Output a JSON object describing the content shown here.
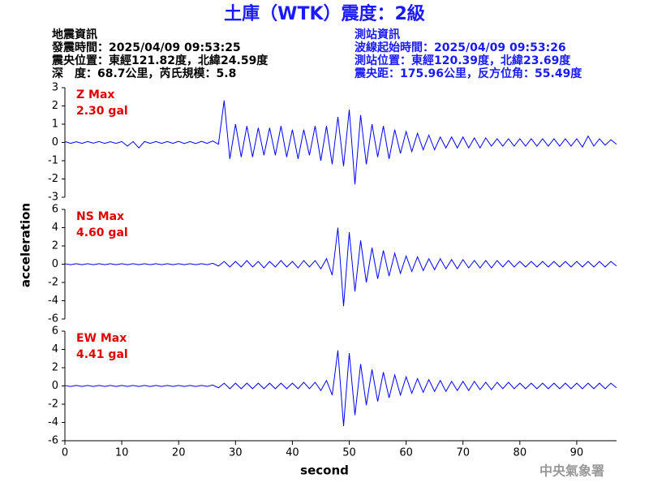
{
  "header": {
    "title": "土庫（WTK）震度：2級",
    "event": [
      "地震資訊",
      "發震時間：2025/04/09 09:53:25",
      "震央位置：東經121.82度，北緯24.59度",
      "深　度：68.7公里，芮氏規模：5.8"
    ],
    "station": [
      "測站資訊",
      "波線起始時間：2025/04/09 09:53:26",
      "測站位置：東經120.39度，北緯23.69度",
      "震央距：175.96公里，反方位角：55.49度"
    ],
    "agency": "中央氣象署"
  },
  "chart_data": [
    {
      "type": "line",
      "label": "Z Max",
      "max_label": "2.30 gal",
      "color": "#0000ff",
      "xlim": [
        0,
        97
      ],
      "ylim": [
        -3,
        3
      ],
      "yticks": [
        -3,
        -2,
        -1,
        0,
        1,
        2,
        3
      ],
      "x": [
        0,
        1,
        2,
        3,
        4,
        5,
        6,
        7,
        8,
        9,
        10,
        11,
        12,
        13,
        14,
        15,
        16,
        17,
        18,
        19,
        20,
        21,
        22,
        23,
        24,
        25,
        26,
        27,
        28,
        29,
        30,
        31,
        32,
        33,
        34,
        35,
        36,
        37,
        38,
        39,
        40,
        41,
        42,
        43,
        44,
        45,
        46,
        47,
        48,
        49,
        50,
        51,
        52,
        53,
        54,
        55,
        56,
        57,
        58,
        59,
        60,
        61,
        62,
        63,
        64,
        65,
        66,
        67,
        68,
        69,
        70,
        71,
        72,
        73,
        74,
        75,
        76,
        77,
        78,
        79,
        80,
        81,
        82,
        83,
        84,
        85,
        86,
        87,
        88,
        89,
        90,
        91,
        92,
        93,
        94,
        95,
        96,
        97
      ],
      "values": [
        0.05,
        -0.05,
        0.04,
        -0.05,
        0.05,
        -0.04,
        0.05,
        -0.05,
        0.04,
        -0.05,
        0.05,
        -0.2,
        0.05,
        -0.3,
        0.05,
        -0.05,
        0.05,
        -0.05,
        0.05,
        -0.05,
        0.06,
        -0.06,
        0.05,
        -0.06,
        0.06,
        -0.05,
        0.08,
        -0.1,
        2.3,
        -0.9,
        1.0,
        -0.8,
        0.9,
        -0.8,
        0.8,
        -0.7,
        0.8,
        -0.7,
        0.9,
        -0.8,
        0.7,
        -0.9,
        0.7,
        -0.7,
        0.9,
        -1.0,
        0.9,
        -1.2,
        1.4,
        -1.3,
        1.8,
        -2.3,
        1.5,
        -1.2,
        1.0,
        -0.8,
        0.9,
        -0.9,
        0.7,
        -0.6,
        0.6,
        -0.5,
        0.5,
        -0.4,
        0.4,
        -0.4,
        0.3,
        -0.3,
        0.3,
        -0.3,
        0.3,
        -0.3,
        0.25,
        -0.3,
        0.25,
        -0.2,
        0.2,
        -0.2,
        0.2,
        -0.2,
        0.2,
        -0.2,
        0.2,
        -0.2,
        0.2,
        -0.2,
        0.2,
        -0.2,
        0.2,
        -0.2,
        0.2,
        -0.25,
        0.35,
        -0.2,
        0.2,
        -0.15,
        0.15,
        -0.1
      ]
    },
    {
      "type": "line",
      "label": "NS Max",
      "max_label": "4.60 gal",
      "color": "#0000ff",
      "ylabel": "acceleration",
      "xlim": [
        0,
        97
      ],
      "ylim": [
        -6,
        6
      ],
      "yticks": [
        -6,
        -4,
        -2,
        0,
        2,
        4,
        6
      ],
      "x": [
        0,
        1,
        2,
        3,
        4,
        5,
        6,
        7,
        8,
        9,
        10,
        11,
        12,
        13,
        14,
        15,
        16,
        17,
        18,
        19,
        20,
        21,
        22,
        23,
        24,
        25,
        26,
        27,
        28,
        29,
        30,
        31,
        32,
        33,
        34,
        35,
        36,
        37,
        38,
        39,
        40,
        41,
        42,
        43,
        44,
        45,
        46,
        47,
        48,
        49,
        50,
        51,
        52,
        53,
        54,
        55,
        56,
        57,
        58,
        59,
        60,
        61,
        62,
        63,
        64,
        65,
        66,
        67,
        68,
        69,
        70,
        71,
        72,
        73,
        74,
        75,
        76,
        77,
        78,
        79,
        80,
        81,
        82,
        83,
        84,
        85,
        86,
        87,
        88,
        89,
        90,
        91,
        92,
        93,
        94,
        95,
        96,
        97
      ],
      "values": [
        0.05,
        -0.05,
        0.05,
        -0.05,
        0.05,
        -0.05,
        0.05,
        -0.05,
        0.05,
        -0.05,
        0.05,
        -0.05,
        0.05,
        -0.05,
        0.05,
        -0.05,
        0.05,
        -0.05,
        0.05,
        -0.05,
        0.05,
        -0.05,
        0.05,
        -0.05,
        0.05,
        -0.05,
        0.1,
        -0.2,
        0.3,
        -0.3,
        0.3,
        -0.3,
        0.4,
        -0.3,
        0.3,
        -0.4,
        0.3,
        -0.3,
        0.4,
        -0.3,
        0.3,
        -0.4,
        0.4,
        -0.3,
        0.4,
        -0.5,
        0.6,
        -1.2,
        4.0,
        -4.6,
        3.5,
        -3.0,
        2.6,
        -2.0,
        1.8,
        -1.6,
        1.5,
        -1.3,
        1.2,
        -1.0,
        0.9,
        -0.8,
        0.8,
        -0.7,
        0.6,
        -0.6,
        0.6,
        -0.5,
        0.5,
        -0.5,
        0.5,
        -0.4,
        0.4,
        -0.4,
        0.4,
        -0.4,
        0.4,
        -0.3,
        0.4,
        -0.3,
        0.3,
        -0.3,
        0.3,
        -0.3,
        0.3,
        -0.3,
        0.3,
        -0.3,
        0.3,
        -0.3,
        0.3,
        -0.3,
        0.3,
        -0.3,
        0.3,
        -0.3,
        0.3,
        -0.2
      ]
    },
    {
      "type": "line",
      "label": "EW Max",
      "max_label": "4.41 gal",
      "color": "#0000ff",
      "xlabel": "second",
      "xlim": [
        0,
        97
      ],
      "xticks": [
        0,
        10,
        20,
        30,
        40,
        50,
        60,
        70,
        80,
        90
      ],
      "ylim": [
        -6,
        6
      ],
      "yticks": [
        -6,
        -4,
        -2,
        0,
        2,
        4,
        6
      ],
      "x": [
        0,
        1,
        2,
        3,
        4,
        5,
        6,
        7,
        8,
        9,
        10,
        11,
        12,
        13,
        14,
        15,
        16,
        17,
        18,
        19,
        20,
        21,
        22,
        23,
        24,
        25,
        26,
        27,
        28,
        29,
        30,
        31,
        32,
        33,
        34,
        35,
        36,
        37,
        38,
        39,
        40,
        41,
        42,
        43,
        44,
        45,
        46,
        47,
        48,
        49,
        50,
        51,
        52,
        53,
        54,
        55,
        56,
        57,
        58,
        59,
        60,
        61,
        62,
        63,
        64,
        65,
        66,
        67,
        68,
        69,
        70,
        71,
        72,
        73,
        74,
        75,
        76,
        77,
        78,
        79,
        80,
        81,
        82,
        83,
        84,
        85,
        86,
        87,
        88,
        89,
        90,
        91,
        92,
        93,
        94,
        95,
        96,
        97
      ],
      "values": [
        0.05,
        -0.05,
        0.05,
        -0.05,
        0.05,
        -0.05,
        0.05,
        -0.05,
        0.05,
        -0.05,
        0.05,
        -0.05,
        0.05,
        -0.05,
        0.05,
        -0.05,
        0.05,
        -0.05,
        0.05,
        -0.05,
        0.05,
        -0.05,
        0.05,
        -0.05,
        0.05,
        -0.05,
        0.1,
        -0.2,
        0.3,
        -0.3,
        0.3,
        -0.3,
        0.3,
        -0.3,
        0.3,
        -0.3,
        0.3,
        -0.3,
        0.3,
        -0.3,
        0.3,
        -0.3,
        0.4,
        -0.3,
        0.4,
        -0.5,
        0.6,
        -1.0,
        3.9,
        -4.4,
        3.6,
        -3.2,
        2.4,
        -2.1,
        1.8,
        -1.7,
        1.5,
        -1.3,
        1.2,
        -1.0,
        1.0,
        -0.8,
        0.8,
        -0.7,
        0.7,
        -0.6,
        0.6,
        -0.6,
        0.5,
        -0.5,
        0.5,
        -0.5,
        0.5,
        -0.4,
        0.4,
        -0.4,
        0.4,
        -0.3,
        0.4,
        -0.3,
        0.3,
        -0.3,
        0.3,
        -0.3,
        0.3,
        -0.3,
        0.3,
        -0.3,
        0.3,
        -0.3,
        0.3,
        -0.3,
        0.3,
        -0.3,
        0.3,
        -0.3,
        0.3,
        -0.2
      ]
    }
  ]
}
